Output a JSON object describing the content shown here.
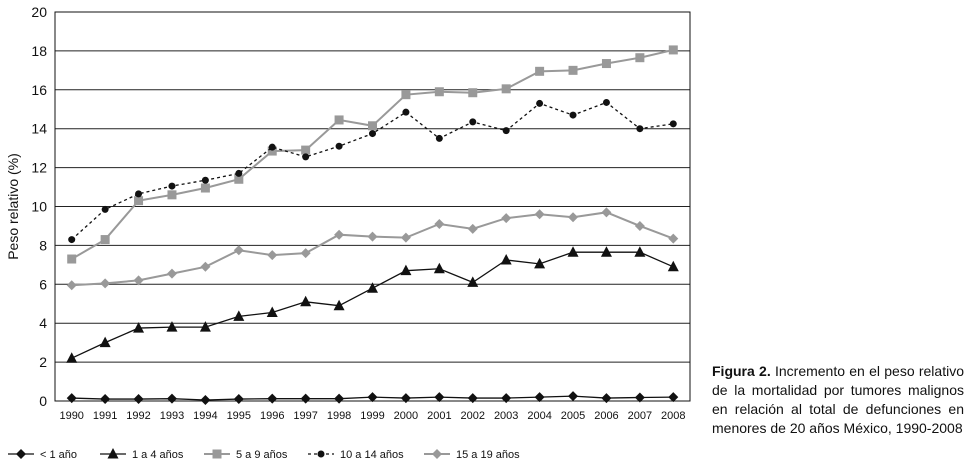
{
  "chart_data": {
    "type": "line",
    "ylabel": "Peso relativo (%)",
    "xlabel": "",
    "ylim": [
      0,
      20
    ],
    "yticks": [
      0,
      2,
      4,
      6,
      8,
      10,
      12,
      14,
      16,
      18,
      20
    ],
    "grid": true,
    "legend_placement": "bottom",
    "categories": [
      "1990",
      "1991",
      "1992",
      "1993",
      "1994",
      "1995",
      "1996",
      "1997",
      "1998",
      "1999",
      "2000",
      "2001",
      "2002",
      "2003",
      "2004",
      "2005",
      "2006",
      "2007",
      "2008"
    ],
    "series": [
      {
        "name": "< 1 año",
        "marker": "diamond",
        "dash": "solid",
        "color": "#111111",
        "values": [
          0.15,
          0.1,
          0.1,
          0.12,
          0.05,
          0.1,
          0.12,
          0.12,
          0.12,
          0.2,
          0.15,
          0.2,
          0.15,
          0.15,
          0.2,
          0.25,
          0.15,
          0.18,
          0.2
        ]
      },
      {
        "name": "1 a 4 años",
        "marker": "triangle",
        "dash": "solid",
        "color": "#111111",
        "values": [
          2.2,
          3.0,
          3.75,
          3.8,
          3.8,
          4.35,
          4.55,
          5.1,
          4.9,
          5.8,
          6.7,
          6.8,
          6.1,
          7.25,
          7.05,
          7.65,
          7.65,
          7.65,
          6.9
        ]
      },
      {
        "name": "5 a 9 años",
        "marker": "square",
        "dash": "solid",
        "color": "#999999",
        "values": [
          7.3,
          8.3,
          10.3,
          10.6,
          10.95,
          11.4,
          12.85,
          12.9,
          14.45,
          14.15,
          15.75,
          15.9,
          15.85,
          16.05,
          16.95,
          17.0,
          17.35,
          17.65,
          18.05
        ]
      },
      {
        "name": "10 a 14 años",
        "marker": "circle",
        "dash": "dotted",
        "color": "#111111",
        "values": [
          8.3,
          9.85,
          10.65,
          11.05,
          11.35,
          11.7,
          13.05,
          12.55,
          13.1,
          13.75,
          14.85,
          13.5,
          14.35,
          13.9,
          15.3,
          14.7,
          15.35,
          14.0,
          14.25
        ]
      },
      {
        "name": "15 a 19 años",
        "marker": "diamond",
        "dash": "solid",
        "color": "#999999",
        "values": [
          5.95,
          6.05,
          6.2,
          6.55,
          6.9,
          7.75,
          7.5,
          7.6,
          8.55,
          8.45,
          8.4,
          9.1,
          8.85,
          9.4,
          9.6,
          9.45,
          9.7,
          9.0,
          8.35
        ]
      }
    ]
  },
  "caption": {
    "label": "Figura 2.",
    "text": "Incremento en el peso relativo de la mortalidad por tumores malignos en relación al total de defunciones en menores de 20 años México, 1990-2008"
  }
}
